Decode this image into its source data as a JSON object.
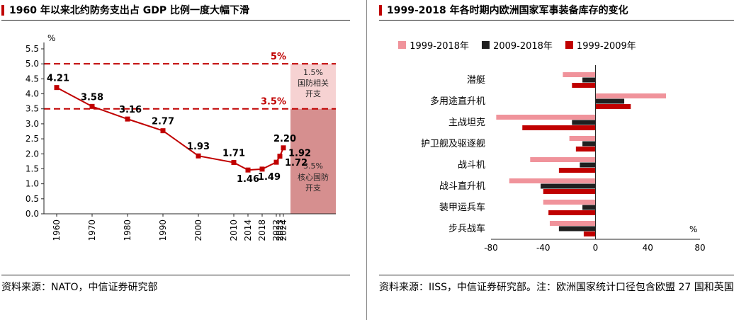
{
  "accent_color": "#c00000",
  "left_panel": {
    "source": "资料来源：NATO，中信证券研究部"
  },
  "right_panel": {
    "source": "资料来源：IISS，中信证券研究部。注：欧洲国家统计口径包含欧盟 27 国和英国"
  },
  "chart_data": [
    {
      "type": "line",
      "title": "1960 年以来北约防务支出占 GDP 比例一度大幅下滑",
      "ylabel": "%",
      "x_labels": [
        "1960",
        "1970",
        "1980",
        "1990",
        "2000",
        "2010",
        "2014",
        "2018",
        "2022",
        "2023",
        "2024"
      ],
      "x_years": [
        1960,
        1970,
        1980,
        1990,
        2000,
        2010,
        2014,
        2018,
        2022,
        2023,
        2024
      ],
      "values": [
        4.21,
        3.58,
        3.16,
        2.77,
        1.93,
        1.71,
        1.46,
        1.49,
        1.72,
        1.92,
        2.2
      ],
      "ylim": [
        0,
        5.5
      ],
      "ytick_step": 0.5,
      "grid": false,
      "line_color": "#c00000",
      "ref_lines": [
        {
          "value": 5.0,
          "label": "5%"
        },
        {
          "value": 3.5,
          "label": "3.5%"
        }
      ],
      "bands": [
        {
          "from": 3.5,
          "to": 5.0,
          "color": "#f6d2d2",
          "label_lines": [
            "1.5%",
            "国防相关",
            "开支"
          ]
        },
        {
          "from": 0.0,
          "to": 3.5,
          "color": "#d68f8f",
          "label_lines": [
            "3.5%",
            "核心国防",
            "开支"
          ]
        }
      ]
    },
    {
      "type": "bar",
      "orientation": "horizontal",
      "title": "1999-2018 年各时期内欧洲国家军事装备库存的变化",
      "xlabel": "%",
      "xlim": [
        -80,
        80
      ],
      "xticks": [
        -80,
        -40,
        0,
        40,
        80
      ],
      "grid": false,
      "legend_position": "top",
      "categories": [
        "潜艇",
        "多用途直升机",
        "主战坦克",
        "护卫舰及驱逐舰",
        "战斗机",
        "战斗直升机",
        "装甲运兵车",
        "步兵战车"
      ],
      "series": [
        {
          "name": "1999-2018年",
          "color": "#f0939b",
          "values": [
            -25,
            54,
            -76,
            -20,
            -50,
            -66,
            -40,
            -35
          ]
        },
        {
          "name": "2009-2018年",
          "color": "#1f1f1f",
          "values": [
            -10,
            22,
            -18,
            -10,
            -12,
            -42,
            -10,
            -28
          ]
        },
        {
          "name": "1999-2009年",
          "color": "#c00000",
          "values": [
            -18,
            27,
            -56,
            -15,
            -28,
            -40,
            -36,
            -9
          ]
        }
      ]
    }
  ]
}
